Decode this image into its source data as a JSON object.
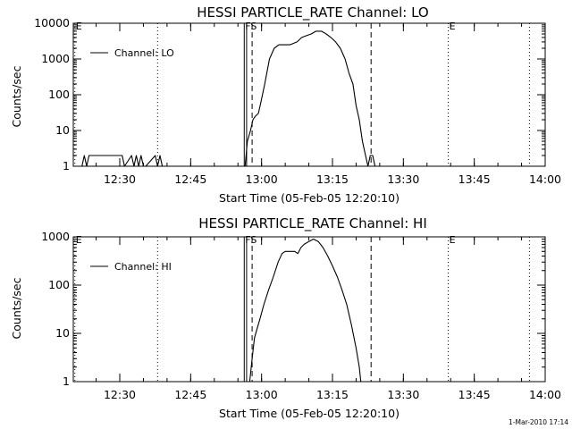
{
  "figure": {
    "footer_stamp": "1-Mar-2010 17:14"
  },
  "chart_data": [
    {
      "type": "line",
      "title": "HESSI PARTICLE_RATE Channel: LO",
      "xlabel": "Start Time (05-Feb-05 12:20:10)",
      "ylabel": "Counts/sec",
      "y_scale": "log",
      "ylim": [
        1,
        10000
      ],
      "xlim": [
        "12:20:10",
        "14:00:00"
      ],
      "x_ticks": [
        "12:30",
        "12:45",
        "13:00",
        "13:15",
        "13:30",
        "13:45",
        "14:00"
      ],
      "y_ticks": [
        "1",
        "10",
        "100",
        "1000",
        "10000"
      ],
      "legend": {
        "position": "top-left",
        "entries": [
          "Channel: LO"
        ]
      },
      "series": [
        {
          "name": "Channel: LO",
          "x": [
            "12:22:00",
            "12:22:30",
            "12:23:00",
            "12:23:30",
            "12:24:30",
            "12:25:00",
            "12:26:00",
            "12:30:30",
            "12:31:00",
            "12:32:30",
            "12:33:00",
            "12:33:30",
            "12:34:00",
            "12:34:30",
            "12:35:00",
            "12:35:30",
            "12:37:30",
            "12:38:00",
            "12:38:30",
            "12:39:00",
            "12:39:30",
            "12:56:30",
            "12:57:00",
            "12:57:40",
            "12:58:10",
            "12:58:40",
            "12:59:20",
            "12:59:50",
            "13:00:40",
            "13:01:40",
            "13:02:40",
            "13:03:40",
            "13:04:30",
            "13:06:00",
            "13:07:30",
            "13:08:30",
            "13:09:30",
            "13:10:30",
            "13:11:30",
            "13:12:40",
            "13:13:40",
            "13:14:40",
            "13:15:40",
            "13:16:40",
            "13:17:40",
            "13:18:30",
            "13:19:20",
            "13:20:00",
            "13:20:40",
            "13:21:20",
            "13:22:00",
            "13:22:30",
            "13:23:00",
            "13:23:30",
            "13:24:00"
          ],
          "y": [
            1,
            2,
            1,
            2,
            2,
            2,
            2,
            2,
            1,
            2,
            1,
            2,
            1,
            2,
            1,
            1,
            2,
            1,
            2,
            1,
            1,
            1,
            5,
            10,
            20,
            25,
            30,
            60,
            200,
            1000,
            2000,
            2500,
            2500,
            2500,
            3000,
            4000,
            4500,
            5000,
            6000,
            6000,
            5000,
            4000,
            3000,
            2000,
            1000,
            400,
            200,
            50,
            20,
            5,
            2,
            1,
            2,
            2,
            1
          ]
        }
      ],
      "annotations": [
        "E",
        "FS",
        "E"
      ]
    },
    {
      "type": "line",
      "title": "HESSI PARTICLE_RATE Channel: HI",
      "xlabel": "Start Time (05-Feb-05 12:20:10)",
      "ylabel": "Counts/sec",
      "y_scale": "log",
      "ylim": [
        1,
        1000
      ],
      "xlim": [
        "12:20:10",
        "14:00:00"
      ],
      "x_ticks": [
        "12:30",
        "12:45",
        "13:00",
        "13:15",
        "13:30",
        "13:45",
        "14:00"
      ],
      "y_ticks": [
        "1",
        "10",
        "100",
        "1000"
      ],
      "legend": {
        "position": "top-left",
        "entries": [
          "Channel: HI"
        ]
      },
      "series": [
        {
          "name": "Channel: HI",
          "x": [
            "12:57:30",
            "12:58:00",
            "12:58:30",
            "12:59:00",
            "12:59:40",
            "13:00:30",
            "13:01:30",
            "13:02:30",
            "13:03:30",
            "13:04:20",
            "13:05:00",
            "13:06:00",
            "13:07:00",
            "13:07:40",
            "13:08:20",
            "13:09:00",
            "13:10:00",
            "13:11:00",
            "13:12:00",
            "13:13:00",
            "13:14:00",
            "13:15:00",
            "13:16:00",
            "13:17:00",
            "13:18:00",
            "13:19:00",
            "13:20:00",
            "13:20:40",
            "13:21:00"
          ],
          "y": [
            1,
            3,
            8,
            12,
            20,
            40,
            80,
            150,
            300,
            450,
            500,
            500,
            500,
            450,
            600,
            700,
            800,
            900,
            800,
            600,
            400,
            250,
            150,
            80,
            40,
            15,
            5,
            2,
            1
          ]
        }
      ],
      "annotations": [
        "E",
        "FS",
        "E"
      ]
    }
  ]
}
